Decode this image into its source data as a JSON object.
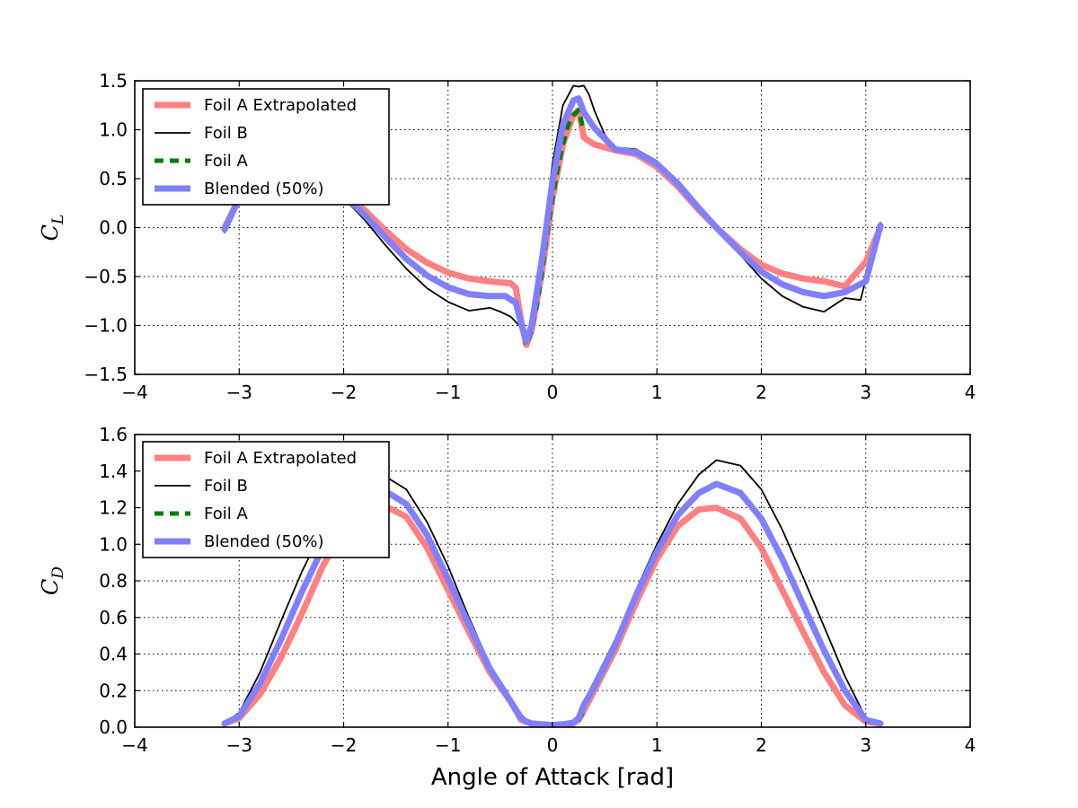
{
  "xlabel": "Angle of Attack [rad]",
  "legend_entries": [
    {
      "name": "Foil A Extrapolated",
      "color": "#ff8080",
      "style": "thick-solid"
    },
    {
      "name": "Foil B",
      "color": "#000000",
      "style": "thin-solid"
    },
    {
      "name": "Foil A",
      "color": "#008000",
      "style": "dashed"
    },
    {
      "name": "Blended (50%)",
      "color": "#8080ff",
      "style": "thick-solid"
    }
  ],
  "chart_data": [
    {
      "type": "line",
      "ylabel": "C_L",
      "xlim": [
        -4,
        4
      ],
      "ylim": [
        -1.5,
        1.5
      ],
      "xticks": [
        -4,
        -3,
        -2,
        -1,
        0,
        1,
        2,
        3,
        4
      ],
      "xtick_labels": [
        "−4",
        "−3",
        "−2",
        "−1",
        "0",
        "1",
        "2",
        "3",
        "4"
      ],
      "yticks": [
        -1.5,
        -1.0,
        -0.5,
        0.0,
        0.5,
        1.0,
        1.5
      ],
      "ytick_labels": [
        "−1.5",
        "−1.0",
        "−0.5",
        "0.0",
        "0.5",
        "1.0",
        "1.5"
      ],
      "grid": true,
      "legend_location": "upper-left",
      "series": [
        {
          "name": "Foil A Extrapolated",
          "color": "#ff8080",
          "x": [
            -3.14,
            -3.0,
            -2.8,
            -2.6,
            -2.4,
            -2.2,
            -2.0,
            -1.8,
            -1.6,
            -1.4,
            -1.2,
            -1.0,
            -0.8,
            -0.6,
            -0.4,
            -0.35,
            -0.3,
            -0.25,
            -0.2,
            -0.1,
            0.0,
            0.1,
            0.2,
            0.25,
            0.3,
            0.4,
            0.6,
            0.8,
            1.0,
            1.2,
            1.4,
            1.57,
            1.8,
            2.0,
            2.2,
            2.4,
            2.6,
            2.8,
            3.0,
            3.14
          ],
          "y": [
            0.0,
            0.3,
            0.5,
            0.57,
            0.55,
            0.48,
            0.36,
            0.18,
            -0.03,
            -0.22,
            -0.36,
            -0.46,
            -0.52,
            -0.55,
            -0.57,
            -0.62,
            -0.95,
            -1.2,
            -1.05,
            -0.45,
            0.3,
            0.85,
            1.15,
            1.2,
            0.92,
            0.85,
            0.79,
            0.75,
            0.62,
            0.42,
            0.18,
            0.0,
            -0.22,
            -0.38,
            -0.47,
            -0.52,
            -0.55,
            -0.6,
            -0.35,
            0.0
          ]
        },
        {
          "name": "Foil B",
          "color": "#000000",
          "x": [
            -3.14,
            -3.0,
            -2.8,
            -2.6,
            -2.4,
            -2.2,
            -2.0,
            -1.8,
            -1.6,
            -1.4,
            -1.2,
            -1.0,
            -0.8,
            -0.6,
            -0.5,
            -0.4,
            -0.3,
            -0.25,
            -0.2,
            -0.1,
            0.0,
            0.1,
            0.2,
            0.25,
            0.3,
            0.35,
            0.4,
            0.5,
            0.6,
            0.8,
            1.0,
            1.2,
            1.4,
            1.57,
            1.8,
            2.0,
            2.2,
            2.4,
            2.6,
            2.8,
            2.95,
            3.14
          ],
          "y": [
            -0.05,
            0.3,
            0.55,
            0.6,
            0.55,
            0.45,
            0.3,
            0.08,
            -0.18,
            -0.42,
            -0.62,
            -0.76,
            -0.85,
            -0.82,
            -0.86,
            -0.91,
            -1.02,
            -1.12,
            -0.95,
            -0.2,
            0.65,
            1.25,
            1.45,
            1.44,
            1.45,
            1.36,
            1.2,
            0.95,
            0.82,
            0.8,
            0.68,
            0.48,
            0.22,
            0.0,
            -0.28,
            -0.52,
            -0.7,
            -0.81,
            -0.86,
            -0.72,
            -0.74,
            0.05
          ]
        },
        {
          "name": "Foil A",
          "color": "#008000",
          "dashed": true,
          "x": [
            -0.3,
            -0.25,
            -0.2,
            -0.15,
            -0.1,
            -0.05,
            0.0,
            0.05,
            0.1,
            0.15,
            0.2,
            0.25,
            0.3
          ],
          "y": [
            -0.95,
            -1.2,
            -1.05,
            -0.8,
            -0.45,
            -0.05,
            0.3,
            0.6,
            0.85,
            1.05,
            1.15,
            1.2,
            0.98
          ]
        },
        {
          "name": "Blended (50%)",
          "color": "#8080ff",
          "x": [
            -3.14,
            -3.0,
            -2.8,
            -2.6,
            -2.4,
            -2.2,
            -2.0,
            -1.8,
            -1.6,
            -1.4,
            -1.2,
            -1.0,
            -0.8,
            -0.6,
            -0.45,
            -0.35,
            -0.3,
            -0.25,
            -0.2,
            -0.1,
            0.0,
            0.1,
            0.2,
            0.25,
            0.3,
            0.4,
            0.6,
            0.8,
            1.0,
            1.2,
            1.4,
            1.57,
            1.8,
            2.0,
            2.2,
            2.4,
            2.6,
            2.8,
            3.0,
            3.14
          ],
          "y": [
            -0.02,
            0.3,
            0.52,
            0.58,
            0.55,
            0.46,
            0.33,
            0.13,
            -0.1,
            -0.32,
            -0.49,
            -0.61,
            -0.68,
            -0.7,
            -0.7,
            -0.77,
            -0.98,
            -1.16,
            -1.0,
            -0.32,
            0.47,
            1.05,
            1.3,
            1.32,
            1.18,
            1.02,
            0.8,
            0.77,
            0.65,
            0.45,
            0.2,
            0.0,
            -0.25,
            -0.45,
            -0.58,
            -0.66,
            -0.7,
            -0.66,
            -0.55,
            0.02
          ]
        }
      ]
    },
    {
      "type": "line",
      "ylabel": "C_D",
      "xlim": [
        -4,
        4
      ],
      "ylim": [
        0.0,
        1.6
      ],
      "xticks": [
        -4,
        -3,
        -2,
        -1,
        0,
        1,
        2,
        3,
        4
      ],
      "xtick_labels": [
        "−4",
        "−3",
        "−2",
        "−1",
        "0",
        "1",
        "2",
        "3",
        "4"
      ],
      "yticks": [
        0.0,
        0.2,
        0.4,
        0.6,
        0.8,
        1.0,
        1.2,
        1.4,
        1.6
      ],
      "ytick_labels": [
        "0.0",
        "0.2",
        "0.4",
        "0.6",
        "0.8",
        "1.0",
        "1.2",
        "1.4",
        "1.6"
      ],
      "grid": true,
      "legend_location": "upper-left",
      "series": [
        {
          "name": "Foil A Extrapolated",
          "color": "#ff8080",
          "x": [
            -3.14,
            -3.0,
            -2.8,
            -2.6,
            -2.4,
            -2.2,
            -2.0,
            -1.8,
            -1.57,
            -1.4,
            -1.2,
            -1.0,
            -0.8,
            -0.6,
            -0.4,
            -0.3,
            -0.25,
            -0.2,
            -0.1,
            0.0,
            0.1,
            0.2,
            0.25,
            0.3,
            0.4,
            0.6,
            0.8,
            1.0,
            1.2,
            1.4,
            1.57,
            1.8,
            2.0,
            2.2,
            2.4,
            2.6,
            2.8,
            3.0,
            3.14
          ],
          "y": [
            0.02,
            0.05,
            0.18,
            0.38,
            0.62,
            0.88,
            1.08,
            1.18,
            1.2,
            1.15,
            0.98,
            0.75,
            0.52,
            0.3,
            0.14,
            0.04,
            0.03,
            0.02,
            0.015,
            0.012,
            0.015,
            0.02,
            0.04,
            0.09,
            0.2,
            0.42,
            0.68,
            0.92,
            1.1,
            1.19,
            1.2,
            1.14,
            0.98,
            0.75,
            0.52,
            0.3,
            0.12,
            0.03,
            0.02
          ]
        },
        {
          "name": "Foil B",
          "color": "#000000",
          "x": [
            -3.14,
            -3.0,
            -2.8,
            -2.6,
            -2.4,
            -2.2,
            -2.0,
            -1.8,
            -1.57,
            -1.4,
            -1.2,
            -1.0,
            -0.8,
            -0.6,
            -0.4,
            -0.3,
            -0.25,
            -0.2,
            -0.1,
            0.0,
            0.1,
            0.2,
            0.25,
            0.3,
            0.4,
            0.6,
            0.8,
            1.0,
            1.2,
            1.4,
            1.57,
            1.8,
            2.0,
            2.2,
            2.4,
            2.6,
            2.8,
            3.0,
            3.14
          ],
          "y": [
            0.02,
            0.08,
            0.3,
            0.58,
            0.85,
            1.08,
            1.25,
            1.34,
            1.36,
            1.3,
            1.12,
            0.88,
            0.6,
            0.34,
            0.14,
            0.05,
            0.03,
            0.02,
            0.015,
            0.012,
            0.015,
            0.03,
            0.06,
            0.14,
            0.25,
            0.48,
            0.75,
            1.0,
            1.22,
            1.38,
            1.46,
            1.43,
            1.3,
            1.08,
            0.82,
            0.55,
            0.28,
            0.05,
            0.02
          ]
        },
        {
          "name": "Foil A",
          "color": "#008000",
          "dashed": true,
          "x": [
            -0.3,
            -0.25,
            -0.2,
            -0.15,
            -0.1,
            -0.05,
            0.0,
            0.05,
            0.1,
            0.15,
            0.2,
            0.25,
            0.3
          ],
          "y": [
            0.06,
            0.03,
            0.02,
            0.015,
            0.013,
            0.012,
            0.012,
            0.012,
            0.013,
            0.015,
            0.02,
            0.04,
            0.09
          ]
        },
        {
          "name": "Blended (50%)",
          "color": "#8080ff",
          "x": [
            -3.14,
            -3.0,
            -2.8,
            -2.6,
            -2.4,
            -2.2,
            -2.0,
            -1.8,
            -1.57,
            -1.4,
            -1.2,
            -1.0,
            -0.8,
            -0.6,
            -0.4,
            -0.3,
            -0.25,
            -0.2,
            -0.1,
            0.0,
            0.1,
            0.2,
            0.25,
            0.3,
            0.4,
            0.6,
            0.8,
            1.0,
            1.2,
            1.4,
            1.57,
            1.8,
            2.0,
            2.2,
            2.4,
            2.6,
            2.8,
            3.0,
            3.14
          ],
          "y": [
            0.02,
            0.06,
            0.24,
            0.48,
            0.74,
            0.98,
            1.16,
            1.26,
            1.28,
            1.22,
            1.05,
            0.81,
            0.56,
            0.32,
            0.14,
            0.05,
            0.03,
            0.02,
            0.015,
            0.012,
            0.015,
            0.025,
            0.05,
            0.12,
            0.22,
            0.45,
            0.72,
            0.96,
            1.16,
            1.28,
            1.33,
            1.28,
            1.14,
            0.92,
            0.67,
            0.42,
            0.2,
            0.04,
            0.02
          ]
        }
      ]
    }
  ]
}
